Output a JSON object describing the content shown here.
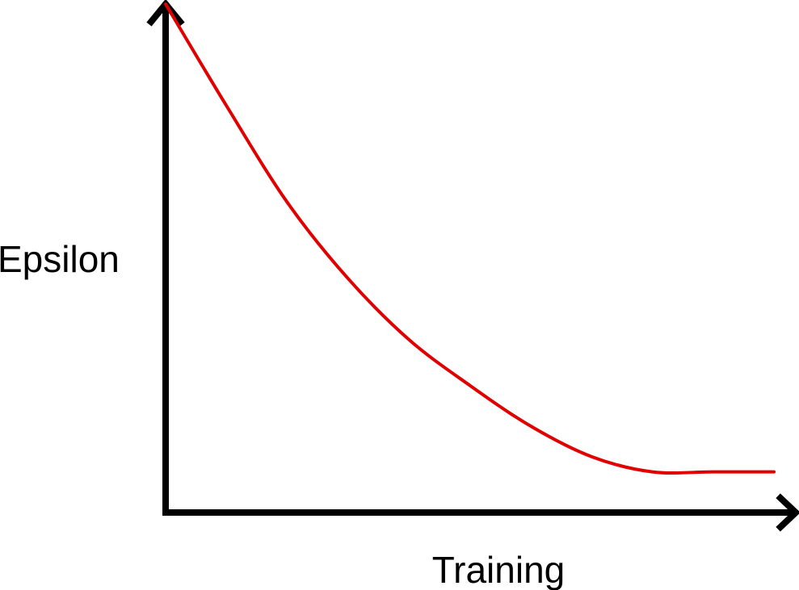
{
  "chart_data": {
    "type": "line",
    "title": "",
    "xlabel": "Training",
    "ylabel": "Epsilon",
    "xlim": [
      0,
      1
    ],
    "ylim": [
      0,
      1
    ],
    "grid": false,
    "legend": "none",
    "series": [
      {
        "color": "#e00000",
        "x": [
          0,
          0.1,
          0.2,
          0.3,
          0.4,
          0.5,
          0.6,
          0.7,
          0.8,
          0.9,
          1.0
        ],
        "y": [
          1.0,
          0.8,
          0.61,
          0.46,
          0.34,
          0.25,
          0.17,
          0.11,
          0.08,
          0.08,
          0.08
        ]
      }
    ]
  },
  "colors": {
    "axis": "#000000",
    "curve": "#e00000"
  }
}
